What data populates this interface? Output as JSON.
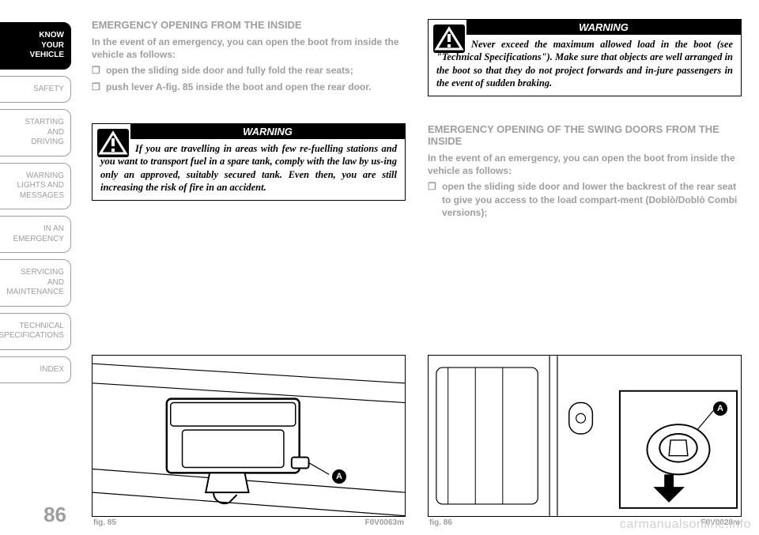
{
  "sidebar": {
    "items": [
      {
        "label": "KNOW\nYOUR\nVEHICLE",
        "active": true
      },
      {
        "label": "SAFETY",
        "active": false
      },
      {
        "label": "STARTING\nAND\nDRIVING",
        "active": false
      },
      {
        "label": "WARNING\nLIGHTS AND\nMESSAGES",
        "active": false
      },
      {
        "label": "IN AN\nEMERGENCY",
        "active": false
      },
      {
        "label": "SERVICING\nAND\nMAINTENANCE",
        "active": false
      },
      {
        "label": "TECHNICAL\nSPECIFICATIONS",
        "active": false
      },
      {
        "label": "INDEX",
        "active": false
      }
    ],
    "page_number": "86"
  },
  "left_top": {
    "title": "EMERGENCY OPENING FROM THE INSIDE",
    "intro": "In the event of an emergency, you can open the boot from inside the vehicle as follows:",
    "bullets": [
      "open the sliding side door and fully fold the rear seats;",
      "push lever A-fig. 85 inside the boot and open the rear door."
    ]
  },
  "warning_left": {
    "label": "WARNING",
    "text_indent": "If you are travelling in areas with few re-fuelling stations and you want to transport",
    "text_rest": "fuel in a spare tank, comply with the law by us-ing only an approved, suitably secured tank. Even then, you are still increasing the risk of fire in an accident."
  },
  "warning_right": {
    "label": "WARNING",
    "text_indent": "Never exceed the maximum allowed load in the boot (see \"Technical Specifications\").",
    "text_rest": "Make sure that objects are well arranged in the boot so that they do not project forwards and in-jure passengers in the event of sudden braking."
  },
  "right_mid": {
    "title": "EMERGENCY OPENING OF THE SWING DOORS FROM THE INSIDE",
    "intro": "In the event of an emergency, you can open the boot from inside the vehicle as follows:",
    "bullets": [
      "open the sliding side door and lower the backrest of the rear seat to give you access to the load compart-ment (Doblò/Doblò Combi versions);"
    ]
  },
  "fig85": {
    "label": "fig. 85",
    "code": "F0V0063m",
    "dot": "A"
  },
  "fig86": {
    "label": "fig. 86",
    "code": "F0V0028m",
    "dot": "A"
  },
  "watermark": "carmanualsonline.info"
}
